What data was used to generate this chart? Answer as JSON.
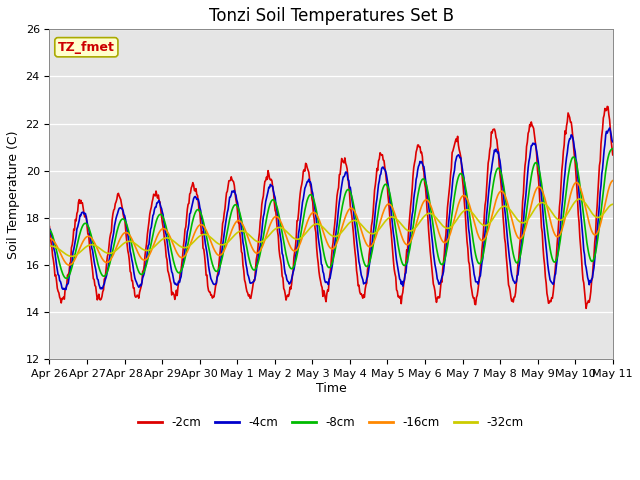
{
  "title": "Tonzi Soil Temperatures Set B",
  "xlabel": "Time",
  "ylabel": "Soil Temperature (C)",
  "ylim": [
    12,
    26
  ],
  "annotation": "TZ_fmet",
  "series_labels": [
    "-2cm",
    "-4cm",
    "-8cm",
    "-16cm",
    "-32cm"
  ],
  "series_colors": [
    "#dd0000",
    "#0000cc",
    "#00bb00",
    "#ff8800",
    "#cccc00"
  ],
  "background_color": "#e5e5e5",
  "tick_labels": [
    "Apr 26",
    "Apr 27",
    "Apr 28",
    "Apr 29",
    "Apr 30",
    "May 1",
    "May 2",
    "May 3",
    "May 4",
    "May 5",
    "May 6",
    "May 7",
    "May 8",
    "May 9",
    "May 10",
    "May 11"
  ],
  "title_fontsize": 12,
  "axis_label_fontsize": 9,
  "tick_fontsize": 8,
  "n_days": 15,
  "pts_per_day": 48
}
